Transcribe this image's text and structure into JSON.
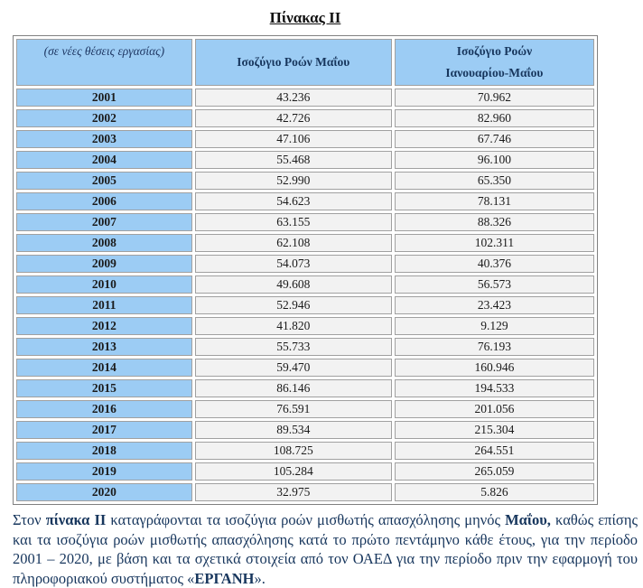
{
  "title": "Πίνακας ΙΙ",
  "table": {
    "header": {
      "col1": "(σε νέες θέσεις εργασίας)",
      "col2": "Ισοζύγιο Ροών Μαΐου",
      "col3_line1": "Ισοζύγιο Ροών",
      "col3_line2": "Ιανουαρίου-Μαΐου"
    },
    "rows": [
      {
        "year": "2001",
        "may": "43.236",
        "jan_may": "70.962"
      },
      {
        "year": "2002",
        "may": "42.726",
        "jan_may": "82.960"
      },
      {
        "year": "2003",
        "may": "47.106",
        "jan_may": "67.746"
      },
      {
        "year": "2004",
        "may": "55.468",
        "jan_may": "96.100"
      },
      {
        "year": "2005",
        "may": "52.990",
        "jan_may": "65.350"
      },
      {
        "year": "2006",
        "may": "54.623",
        "jan_may": "78.131"
      },
      {
        "year": "2007",
        "may": "63.155",
        "jan_may": "88.326"
      },
      {
        "year": "2008",
        "may": "62.108",
        "jan_may": "102.311"
      },
      {
        "year": "2009",
        "may": "54.073",
        "jan_may": "40.376"
      },
      {
        "year": "2010",
        "may": "49.608",
        "jan_may": "56.573"
      },
      {
        "year": "2011",
        "may": "52.946",
        "jan_may": "23.423"
      },
      {
        "year": "2012",
        "may": "41.820",
        "jan_may": "9.129"
      },
      {
        "year": "2013",
        "may": "55.733",
        "jan_may": "76.193"
      },
      {
        "year": "2014",
        "may": "59.470",
        "jan_may": "160.946"
      },
      {
        "year": "2015",
        "may": "86.146",
        "jan_may": "194.533"
      },
      {
        "year": "2016",
        "may": "76.591",
        "jan_may": "201.056"
      },
      {
        "year": "2017",
        "may": "89.534",
        "jan_may": "215.304"
      },
      {
        "year": "2018",
        "may": "108.725",
        "jan_may": "264.551"
      },
      {
        "year": "2019",
        "may": "105.284",
        "jan_may": "265.059"
      },
      {
        "year": "2020",
        "may": "32.975",
        "jan_may": "5.826"
      }
    ]
  },
  "paragraph": {
    "segments": [
      {
        "text": "Στον ",
        "bold": false
      },
      {
        "text": "πίνακα ΙΙ",
        "bold": true
      },
      {
        "text": " καταγράφονται τα ισοζύγια ροών μισθωτής απασχόλησης μηνός ",
        "bold": false
      },
      {
        "text": "Μαΐου,",
        "bold": true
      },
      {
        "text": " καθώς επίσης και τα ισοζύγια ροών μισθωτής απασχόλησης κατά το πρώτο πεντάμηνο κάθε έτους, για την περίοδο 2001 – 2020, με βάση και τα σχετικά στοιχεία από τον ΟΑΕΔ για την περίοδο πριν την εφαρμογή του πληροφοριακού συστήματος «",
        "bold": false
      },
      {
        "text": "ΕΡΓΑΝΗ",
        "bold": true
      },
      {
        "text": "».",
        "bold": false
      }
    ]
  },
  "colors": {
    "header_blue": "#9CCCF4",
    "cell_gray": "#F2F2F2",
    "border_gray": "#A0A0A0",
    "text_navy": "#17365D"
  }
}
